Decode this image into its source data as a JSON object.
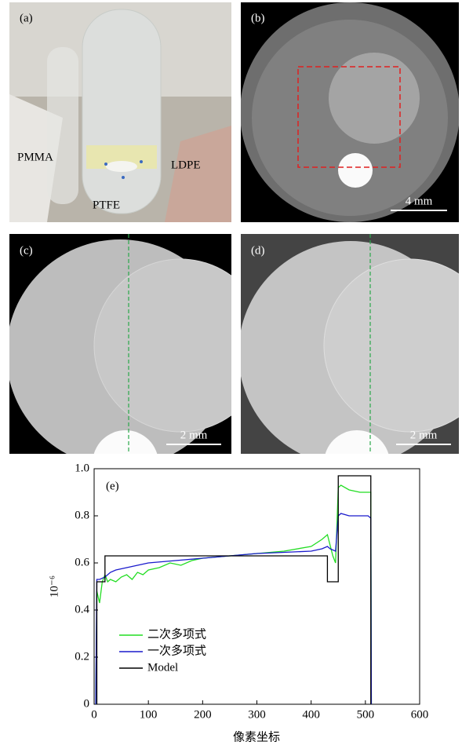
{
  "panels": {
    "a": {
      "label": "(a)",
      "annotations": [
        "PMMA",
        "LDPE",
        "PTFE"
      ]
    },
    "b": {
      "label": "(b)",
      "scale_bar": "4 mm"
    },
    "c": {
      "label": "(c)",
      "scale_bar": "2 mm"
    },
    "d": {
      "label": "(d)",
      "scale_bar": "2 mm"
    }
  },
  "chart_data": {
    "type": "line",
    "annotation": "(e)",
    "xlabel": "像素坐标",
    "ylabel": "10⁻⁶",
    "xlim": [
      0,
      600
    ],
    "xticks": [
      0,
      100,
      200,
      300,
      400,
      500,
      600
    ],
    "ylim": [
      0,
      1
    ],
    "yticks": [
      0,
      0.2,
      0.4,
      0.6,
      0.8,
      {
        "value": 1,
        "label": "1.0"
      }
    ],
    "legend": "lower-left",
    "series": [
      {
        "name": "二次多项式",
        "color": "#22dd22",
        "x": [
          3,
          5,
          10,
          15,
          20,
          25,
          30,
          40,
          50,
          60,
          70,
          80,
          90,
          100,
          120,
          140,
          160,
          180,
          200,
          250,
          300,
          350,
          400,
          420,
          430,
          440,
          445,
          450,
          455,
          470,
          490,
          505,
          510,
          511
        ],
        "values": [
          0,
          0.48,
          0.43,
          0.52,
          0.55,
          0.52,
          0.53,
          0.52,
          0.54,
          0.55,
          0.53,
          0.56,
          0.55,
          0.57,
          0.58,
          0.6,
          0.59,
          0.61,
          0.62,
          0.63,
          0.64,
          0.65,
          0.67,
          0.7,
          0.72,
          0.63,
          0.6,
          0.92,
          0.93,
          0.91,
          0.9,
          0.9,
          0.9,
          0
        ]
      },
      {
        "name": "一次多项式",
        "color": "#1a1acc",
        "x": [
          3,
          5,
          10,
          20,
          30,
          40,
          60,
          80,
          100,
          150,
          200,
          250,
          300,
          350,
          400,
          420,
          430,
          435,
          445,
          450,
          455,
          470,
          490,
          505,
          510,
          511
        ],
        "values": [
          0,
          0.53,
          0.53,
          0.54,
          0.56,
          0.57,
          0.58,
          0.59,
          0.6,
          0.61,
          0.62,
          0.63,
          0.64,
          0.645,
          0.65,
          0.66,
          0.67,
          0.66,
          0.65,
          0.8,
          0.81,
          0.8,
          0.8,
          0.8,
          0.79,
          0
        ]
      },
      {
        "name": "Model",
        "color": "#000000",
        "x": [
          5,
          5,
          20,
          20,
          430,
          430,
          450,
          450,
          510,
          510
        ],
        "values": [
          0,
          0.52,
          0.52,
          0.63,
          0.63,
          0.52,
          0.52,
          0.97,
          0.97,
          0
        ]
      }
    ]
  }
}
